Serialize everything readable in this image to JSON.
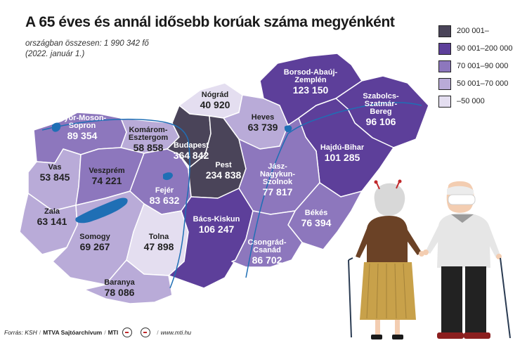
{
  "title": "A 65 éves és annál idősebb korúak száma megyénként",
  "subtitle": "országban összesen: 1 990 342 fő",
  "date": "(2022. január 1.)",
  "colors": {
    "c5": "#4a4459",
    "c4": "#5d3f9a",
    "c3": "#8d77bd",
    "c2": "#b9abd8",
    "c1": "#e4def0",
    "water": "#1f6fb5",
    "border": "#ffffff"
  },
  "legend": [
    {
      "label": "200 001–",
      "color": "#4a4459"
    },
    {
      "label": "90 001–200 000",
      "color": "#5d3f9a"
    },
    {
      "label": "70 001–90 000",
      "color": "#8d77bd"
    },
    {
      "label": "50 001–70 000",
      "color": "#b9abd8"
    },
    {
      "label": "–50 000",
      "color": "#e4def0"
    }
  ],
  "counties": {
    "gyor": {
      "name": [
        "Győr-Moson-",
        "Sopron"
      ],
      "value": "89 354"
    },
    "komarom": {
      "name": [
        "Komárom-",
        "Esztergom"
      ],
      "value": "58 858"
    },
    "nograd": {
      "name": [
        "Nógrád"
      ],
      "value": "40 920"
    },
    "borsod": {
      "name": [
        "Borsod-Abaúj-",
        "Zemplén"
      ],
      "value": "123 150"
    },
    "szabolcs": {
      "name": [
        "Szabolcs-",
        "Szatmár-",
        "Bereg"
      ],
      "value": "96 106"
    },
    "heves": {
      "name": [
        "Heves"
      ],
      "value": "63 739"
    },
    "budapest": {
      "name": [
        "Budapest"
      ],
      "value": "364 842"
    },
    "pest": {
      "name": [
        "Pest"
      ],
      "value": "234 838"
    },
    "hajdu": {
      "name": [
        "Hajdú-Bihar"
      ],
      "value": "101 285"
    },
    "vas": {
      "name": [
        "Vas"
      ],
      "value": "53 845"
    },
    "veszprem": {
      "name": [
        "Veszprém"
      ],
      "value": "74 221"
    },
    "fejer": {
      "name": [
        "Fejér"
      ],
      "value": "83 632"
    },
    "jasz": {
      "name": [
        "Jász-",
        "Nagykun-",
        "Szolnok"
      ],
      "value": "77 817"
    },
    "zala": {
      "name": [
        "Zala"
      ],
      "value": "63 141"
    },
    "somogy": {
      "name": [
        "Somogy"
      ],
      "value": "69 267"
    },
    "tolna": {
      "name": [
        "Tolna"
      ],
      "value": "47 898"
    },
    "bacs": {
      "name": [
        "Bács-Kiskun"
      ],
      "value": "106 247"
    },
    "bekes": {
      "name": [
        "Békés"
      ],
      "value": "76 394"
    },
    "csongrad": {
      "name": [
        "Csongrád-",
        "Csanád"
      ],
      "value": "86 702"
    },
    "baranya": {
      "name": [
        "Baranya"
      ],
      "value": "78 086"
    }
  },
  "footer": {
    "source": "Forrás: KSH",
    "agency": "MTVA Sajtóarchívum",
    "mti": "MTI",
    "url": "www.mti.hu"
  }
}
